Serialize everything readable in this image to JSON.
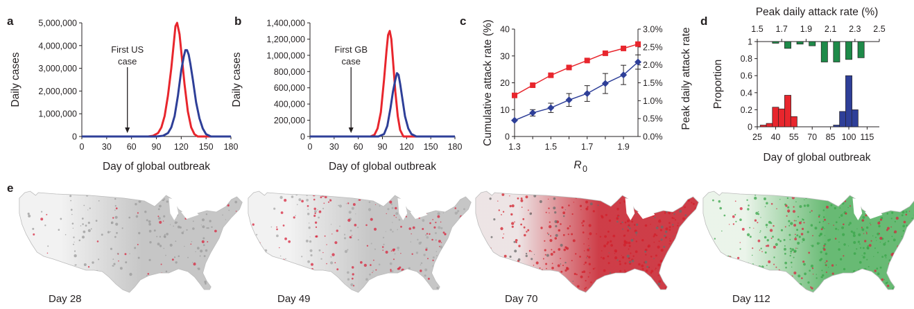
{
  "chart_data": [
    {
      "panel": "a",
      "type": "line",
      "xlabel": "Day of global outbreak",
      "ylabel": "Daily cases",
      "xlim": [
        0,
        180
      ],
      "ylim": [
        0,
        5000000
      ],
      "xticks": [
        "0",
        "30",
        "60",
        "90",
        "120",
        "150",
        "180"
      ],
      "yticks": [
        "0",
        "1,000,000",
        "2,000,000",
        "3,000,000",
        "4,000,000",
        "5,000,000"
      ],
      "annotation": {
        "lines": [
          "First US",
          "case"
        ],
        "day": 55
      },
      "series": [
        {
          "color": "#e8262d",
          "x": [
            0,
            80,
            86,
            92,
            96,
            100,
            104,
            108,
            111,
            113,
            115,
            118,
            121,
            124,
            128,
            132,
            136,
            140,
            200
          ],
          "y": [
            0,
            0,
            30000,
            150000,
            400000,
            900000,
            1800000,
            3000000,
            4100000,
            4850000,
            5000000,
            4500000,
            3400000,
            2300000,
            1100000,
            400000,
            100000,
            0,
            0
          ]
        },
        {
          "color": "#2e3f98",
          "x": [
            0,
            90,
            98,
            104,
            108,
            112,
            116,
            120,
            123,
            125,
            127,
            129,
            131,
            134,
            138,
            142,
            146,
            150,
            156,
            200
          ],
          "y": [
            0,
            0,
            30000,
            150000,
            400000,
            900000,
            1800000,
            2900000,
            3500000,
            3800000,
            3800000,
            3600000,
            3200000,
            2500000,
            1500000,
            800000,
            350000,
            100000,
            0,
            0
          ]
        }
      ]
    },
    {
      "panel": "b",
      "type": "line",
      "xlabel": "Day of global outbreak",
      "ylabel": "Daily cases",
      "xlim": [
        0,
        180
      ],
      "ylim": [
        0,
        1400000
      ],
      "xticks": [
        "0",
        "30",
        "60",
        "90",
        "120",
        "150",
        "180"
      ],
      "yticks": [
        "0",
        "200,000",
        "400,000",
        "600,000",
        "800,000",
        "1,000,000",
        "1,200,000",
        "1,400,000"
      ],
      "annotation": {
        "lines": [
          "First GB",
          "case"
        ],
        "day": 51
      },
      "series": [
        {
          "color": "#e8262d",
          "x": [
            0,
            75,
            80,
            84,
            88,
            92,
            95,
            97,
            99,
            101,
            103,
            106,
            109,
            112,
            116,
            200
          ],
          "y": [
            0,
            0,
            20000,
            100000,
            300000,
            700000,
            1050000,
            1250000,
            1300000,
            1200000,
            950000,
            550000,
            250000,
            80000,
            0,
            0
          ]
        },
        {
          "color": "#2e3f98",
          "x": [
            0,
            85,
            92,
            96,
            100,
            103,
            106,
            108,
            110,
            112,
            115,
            118,
            122,
            126,
            132,
            200
          ],
          "y": [
            0,
            0,
            30000,
            130000,
            350000,
            550000,
            700000,
            780000,
            760000,
            650000,
            450000,
            250000,
            100000,
            30000,
            0,
            0
          ]
        }
      ]
    },
    {
      "panel": "c",
      "type": "line",
      "xlabel": "R",
      "xlabel_subscript": "0",
      "ylabel": "Cumulative attack rate (%)",
      "y2label": "Peak daily attack rate",
      "xlim": [
        1.3,
        1.98
      ],
      "ylim": [
        0,
        40
      ],
      "y2lim": [
        0,
        3.0
      ],
      "xticks": [
        "1.3",
        "1.5",
        "1.7",
        "1.9"
      ],
      "yticks": [
        "0",
        "10",
        "20",
        "30",
        "40"
      ],
      "y2ticks": [
        "0.0%",
        "0.5%",
        "1.0%",
        "1.5%",
        "2.0%",
        "2.5%",
        "3.0%"
      ],
      "series": [
        {
          "color": "#e8262d",
          "marker": "square",
          "axis": "left",
          "x": [
            1.3,
            1.4,
            1.5,
            1.6,
            1.7,
            1.8,
            1.9,
            1.98
          ],
          "y": [
            15.3,
            19.1,
            22.8,
            25.7,
            28.3,
            31.0,
            32.8,
            34.4
          ]
        },
        {
          "color": "#2e3f98",
          "marker": "diamond",
          "axis": "right",
          "x": [
            1.3,
            1.4,
            1.5,
            1.6,
            1.7,
            1.8,
            1.9,
            1.98
          ],
          "y": [
            0.45,
            0.66,
            0.8,
            1.02,
            1.2,
            1.48,
            1.72,
            2.08
          ],
          "err": [
            0.02,
            0.09,
            0.13,
            0.18,
            0.22,
            0.28,
            0.27,
            0.2
          ]
        }
      ]
    },
    {
      "panel": "d",
      "type": "bar",
      "xlabel": "Day of global outbreak",
      "ylabel": "Proportion",
      "x2label": "Peak daily attack rate (%)",
      "xlim": [
        25,
        125
      ],
      "ylim": [
        0,
        1
      ],
      "x2lim": [
        1.5,
        2.5
      ],
      "xticks": [
        "25",
        "40",
        "55",
        "70",
        "85",
        "100",
        "115"
      ],
      "yticks": [
        "0",
        "0.2",
        "0.4",
        "0.6",
        "0.8",
        "1"
      ],
      "x2ticks": [
        "1.5",
        "1.7",
        "1.9",
        "2.1",
        "2.3",
        "2.5"
      ],
      "series": [
        {
          "color": "#e8262d",
          "x": [
            30,
            35,
            40,
            45,
            50,
            55
          ],
          "values": [
            0.02,
            0.04,
            0.23,
            0.21,
            0.37,
            0.12
          ]
        },
        {
          "color": "#2e3f98",
          "x": [
            90,
            95,
            100,
            105
          ],
          "values": [
            0.02,
            0.18,
            0.6,
            0.2
          ]
        },
        {
          "color": "#1e8a49",
          "axis": "top",
          "x": [
            1.65,
            1.75,
            1.85,
            1.95,
            2.05,
            2.15,
            2.25,
            2.35
          ],
          "values": [
            0.02,
            0.08,
            0.03,
            0.05,
            0.24,
            0.24,
            0.21,
            0.19
          ]
        }
      ]
    }
  ],
  "maps": {
    "panel": "e",
    "labels": [
      "Day 28",
      "Day 49",
      "Day 70",
      "Day 112"
    ]
  }
}
